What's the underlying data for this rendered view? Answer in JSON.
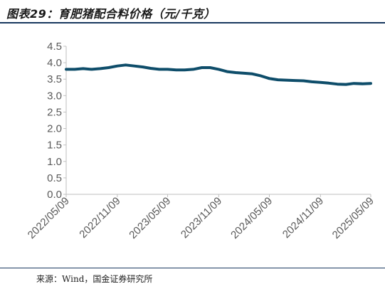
{
  "header": {
    "title": "图表29：育肥猪配合料价格（元/千克）"
  },
  "footer": {
    "source": "来源：Wind，国金证券研究所"
  },
  "colors": {
    "series": "#0e4d6a",
    "axis": "#bfbfbf",
    "title_rule": "#17375e"
  },
  "chart_data": {
    "type": "line",
    "title": "育肥猪配合料价格（元/千克）",
    "xlabel": "",
    "ylabel": "",
    "ylim": [
      0,
      4.5
    ],
    "yticks": [
      "0.0",
      "0.5",
      "1.0",
      "1.5",
      "2.0",
      "2.5",
      "3.0",
      "3.5",
      "4.0",
      "4.5"
    ],
    "xticks": [
      "2022/05/09",
      "2022/11/09",
      "2023/05/09",
      "2023/11/09",
      "2024/05/09",
      "2024/11/09",
      "2025/05/09"
    ],
    "grid": false,
    "legend": "none",
    "series": [
      {
        "x": [
          "2022/05/09",
          "2022/06/09",
          "2022/07/09",
          "2022/08/09",
          "2022/09/09",
          "2022/10/09",
          "2022/11/09",
          "2022/12/09",
          "2023/01/09",
          "2023/02/09",
          "2023/03/09",
          "2023/04/09",
          "2023/05/09",
          "2023/06/09",
          "2023/07/09",
          "2023/08/09",
          "2023/09/09",
          "2023/10/09",
          "2023/11/09",
          "2023/12/09",
          "2024/01/09",
          "2024/02/09",
          "2024/03/09",
          "2024/04/09",
          "2024/05/09",
          "2024/06/09",
          "2024/07/09",
          "2024/08/09",
          "2024/09/09",
          "2024/10/09",
          "2024/11/09",
          "2024/12/09",
          "2025/01/09",
          "2025/02/09",
          "2025/03/09",
          "2025/04/09",
          "2025/05/09"
        ],
        "values": [
          3.8,
          3.8,
          3.82,
          3.8,
          3.82,
          3.85,
          3.9,
          3.93,
          3.9,
          3.87,
          3.83,
          3.8,
          3.8,
          3.78,
          3.78,
          3.8,
          3.85,
          3.85,
          3.8,
          3.73,
          3.7,
          3.68,
          3.66,
          3.6,
          3.52,
          3.48,
          3.47,
          3.46,
          3.45,
          3.42,
          3.4,
          3.38,
          3.35,
          3.34,
          3.37,
          3.36,
          3.37
        ]
      }
    ]
  }
}
